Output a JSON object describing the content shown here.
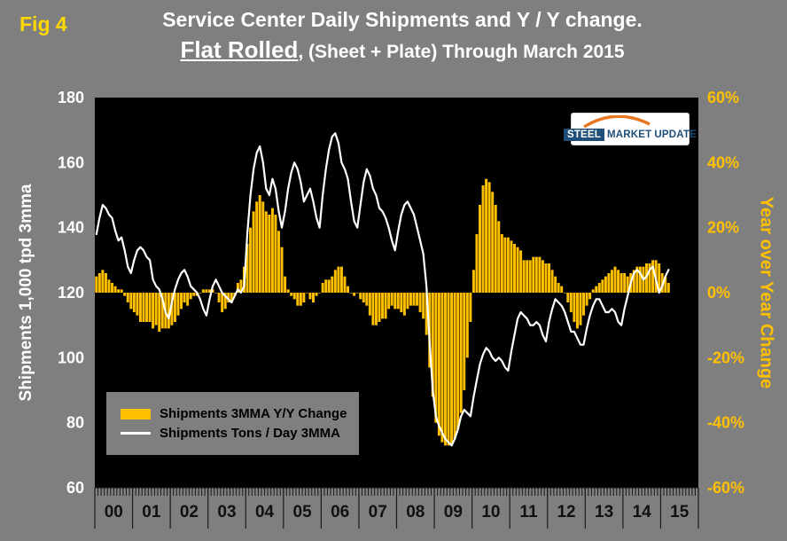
{
  "header": {
    "fig_label": "Fig 4",
    "title_line1": "Service Center Daily Shipments and Y / Y change.",
    "title_line2_bold": "Flat Rolled",
    "title_line2_rest": ", (Sheet + Plate) Through March 2015"
  },
  "legend": {
    "items": [
      {
        "label": "Shipments 3MMA Y/Y Change",
        "swatch": "bar",
        "color": "#ffc000"
      },
      {
        "label": "Shipments Tons / Day 3MMA",
        "swatch": "line",
        "color": "#ffffff"
      }
    ]
  },
  "logo": {
    "word1": "STEEL",
    "word2": "MARKET",
    "word3": "UPDATE"
  },
  "colors": {
    "canvas_bg": "#7f7f7f",
    "plot_bg": "#000000",
    "bar_gold": "#ffc000",
    "line_white": "#ffffff",
    "x_label": "#111111",
    "fig_label_yellow": "#ffd800",
    "logo_blue": "#1f4e79",
    "logo_orange": "#e87722"
  },
  "chart_data": {
    "type": "combo-bar-line",
    "frequency": "monthly",
    "x_start": "2000-01",
    "x_end": "2015-03",
    "x_year_labels": [
      "00",
      "01",
      "02",
      "03",
      "04",
      "05",
      "06",
      "07",
      "08",
      "09",
      "10",
      "11",
      "12",
      "13",
      "14",
      "15"
    ],
    "left_axis": {
      "title": "Shipments 1,000 tpd 3mma",
      "ticks": [
        180,
        160,
        140,
        120,
        100,
        80,
        60
      ],
      "range": [
        60,
        180
      ],
      "color": "#ffffff"
    },
    "right_axis": {
      "title": "Year over Year Change",
      "ticks": [
        "60%",
        "40%",
        "20%",
        "0%",
        "-20%",
        "-40%",
        "-60%"
      ],
      "range": [
        -60,
        60
      ],
      "color": "#ffc000"
    },
    "grid": false,
    "legend_position": "inside-lower-left",
    "series": [
      {
        "name": "Shipments 3MMA Y/Y Change",
        "type": "bar",
        "axis": "right",
        "unit": "%",
        "color": "#ffc000",
        "values": [
          5,
          6,
          7,
          6,
          4,
          3,
          2,
          1,
          1,
          -1,
          -3,
          -5,
          -6,
          -7,
          -9,
          -9,
          -9,
          -9,
          -11,
          -10,
          -12,
          -11,
          -11,
          -11,
          -10,
          -9,
          -7,
          -5,
          -3,
          -4,
          -2,
          -1,
          -1,
          0,
          1,
          1,
          1,
          1,
          0,
          -3,
          -6,
          -5,
          -3,
          -3,
          -1,
          3,
          4,
          8,
          15,
          20,
          25,
          28,
          30,
          28,
          25,
          24,
          26,
          24,
          19,
          14,
          5,
          1,
          -1,
          -2,
          -4,
          -4,
          -3,
          0,
          -2,
          -3,
          -1,
          0,
          3,
          4,
          4,
          5,
          7,
          8,
          8,
          5,
          2,
          0,
          -1,
          0,
          -2,
          -3,
          -4,
          -7,
          -10,
          -10,
          -9,
          -8,
          -8,
          -5,
          -4,
          -5,
          -5,
          -6,
          -7,
          -5,
          -4,
          -4,
          -4,
          -6,
          -8,
          -13,
          -23,
          -32,
          -40,
          -44,
          -46,
          -47,
          -47,
          -47,
          -45,
          -42,
          -37,
          -30,
          -20,
          -9,
          7,
          18,
          27,
          33,
          35,
          34,
          31,
          27,
          22,
          18,
          17,
          17,
          16,
          15,
          14,
          13,
          10,
          10,
          10,
          11,
          11,
          11,
          10,
          9,
          9,
          7,
          5,
          3,
          2,
          0,
          -3,
          -6,
          -9,
          -11,
          -10,
          -7,
          -4,
          -2,
          1,
          2,
          3,
          4,
          5,
          6,
          7,
          8,
          7,
          6,
          6,
          5,
          6,
          7,
          8,
          8,
          8,
          9,
          9,
          10,
          10,
          9,
          6,
          5,
          3
        ]
      },
      {
        "name": "Shipments Tons / Day 3MMA",
        "type": "line",
        "axis": "left",
        "unit": "1,000 tpd",
        "color": "#ffffff",
        "values": [
          138,
          143,
          147,
          146,
          144,
          143,
          139,
          136,
          137,
          133,
          128,
          126,
          130,
          133,
          134,
          133,
          131,
          130,
          124,
          122,
          121,
          118,
          114,
          112,
          117,
          121,
          124,
          126,
          127,
          125,
          122,
          121,
          120,
          118,
          115,
          113,
          118,
          122,
          124,
          122,
          120,
          119,
          118,
          117,
          119,
          121,
          120,
          122,
          138,
          150,
          158,
          163,
          165,
          160,
          152,
          150,
          155,
          152,
          145,
          140,
          145,
          152,
          157,
          160,
          158,
          154,
          148,
          150,
          152,
          148,
          143,
          140,
          150,
          158,
          164,
          168,
          169,
          166,
          160,
          158,
          155,
          148,
          142,
          140,
          147,
          154,
          158,
          156,
          152,
          150,
          146,
          145,
          143,
          140,
          136,
          133,
          139,
          144,
          147,
          148,
          146,
          144,
          140,
          136,
          132,
          122,
          105,
          90,
          82,
          79,
          77,
          75,
          74,
          73,
          75,
          78,
          82,
          84,
          83,
          82,
          88,
          93,
          98,
          101,
          103,
          102,
          100,
          99,
          100,
          99,
          97,
          96,
          102,
          107,
          112,
          114,
          113,
          112,
          110,
          110,
          111,
          110,
          107,
          105,
          111,
          115,
          118,
          117,
          116,
          114,
          111,
          108,
          108,
          106,
          104,
          104,
          109,
          113,
          116,
          118,
          118,
          116,
          114,
          114,
          115,
          114,
          111,
          110,
          115,
          119,
          123,
          126,
          127,
          126,
          124,
          125,
          127,
          128,
          124,
          120,
          122,
          125,
          127
        ]
      }
    ]
  }
}
